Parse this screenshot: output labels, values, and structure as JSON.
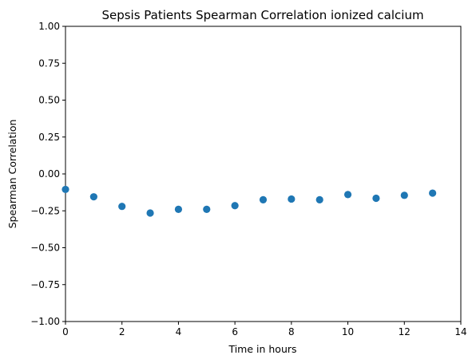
{
  "chart_data": {
    "type": "scatter",
    "title": "Sepsis Patients Spearman Correlation ionized calcium",
    "xlabel": "Time in hours",
    "ylabel": "Spearman Correlation",
    "xlim": [
      0,
      14
    ],
    "ylim": [
      -1.0,
      1.0
    ],
    "x_ticks": [
      0,
      2,
      4,
      6,
      8,
      10,
      12,
      14
    ],
    "x_tick_labels": [
      "0",
      "2",
      "4",
      "6",
      "8",
      "10",
      "12",
      "14"
    ],
    "y_ticks": [
      1.0,
      0.75,
      0.5,
      0.25,
      0.0,
      -0.25,
      -0.5,
      -0.75,
      -1.0
    ],
    "y_tick_labels": [
      "1.00",
      "0.75",
      "0.50",
      "0.25",
      "0.00",
      "−0.25",
      "−0.50",
      "−0.75",
      "−1.00"
    ],
    "grid": false,
    "marker_color": "#1f77b4",
    "series": [
      {
        "x": [
          0,
          1,
          2,
          3,
          4,
          5,
          6,
          7,
          8,
          9,
          10,
          11,
          12,
          13
        ],
        "y": [
          -0.105,
          -0.155,
          -0.22,
          -0.265,
          -0.24,
          -0.24,
          -0.215,
          -0.175,
          -0.17,
          -0.175,
          -0.14,
          -0.165,
          -0.145,
          -0.13
        ]
      }
    ]
  }
}
